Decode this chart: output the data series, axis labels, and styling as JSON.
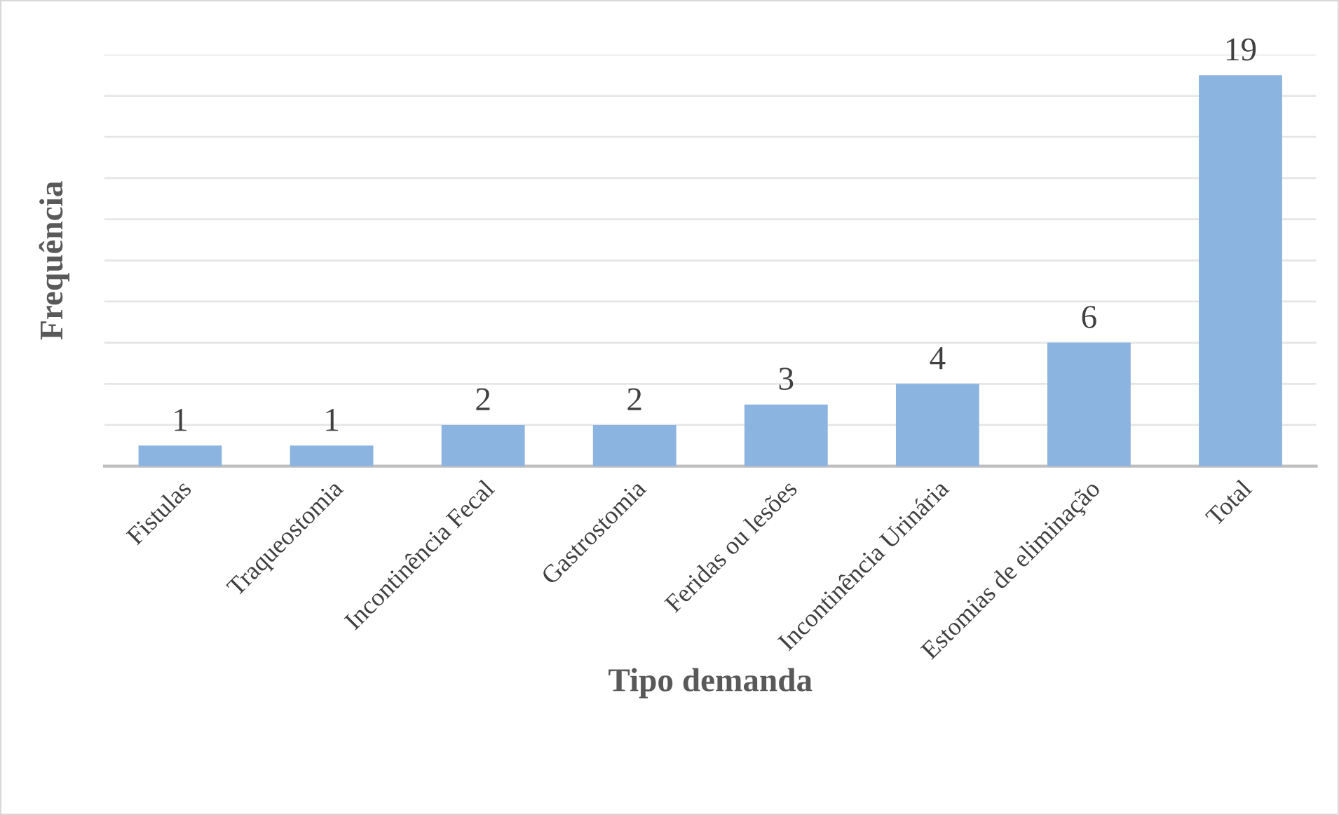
{
  "chart_data": {
    "type": "bar",
    "xlabel": "Tipo demanda",
    "ylabel": "Frequência",
    "categories": [
      "Fistulas",
      "Traqueostomia",
      "Incontinência Fecal",
      "Gastrostomia",
      "Feridas ou lesões",
      "Incontinência Urinária",
      "Estomias de eliminação",
      "Total"
    ],
    "values": [
      1,
      1,
      2,
      2,
      3,
      4,
      6,
      19
    ],
    "color": "#8cb4e1",
    "ylim": [
      0,
      20
    ],
    "yticks": [
      {
        "value": 0,
        "label": null
      },
      {
        "value": 2,
        "label": null
      },
      {
        "value": 4,
        "label": null
      },
      {
        "value": 6,
        "label": null
      },
      {
        "value": 8,
        "label": null
      },
      {
        "value": 10,
        "label": null
      },
      {
        "value": 12,
        "label": null
      },
      {
        "value": 14,
        "label": null
      },
      {
        "value": 16,
        "label": null
      },
      {
        "value": 18,
        "label": null
      },
      {
        "value": 20,
        "label": null
      }
    ],
    "tick_labels": "x",
    "grid": "y",
    "data_labels": true
  }
}
